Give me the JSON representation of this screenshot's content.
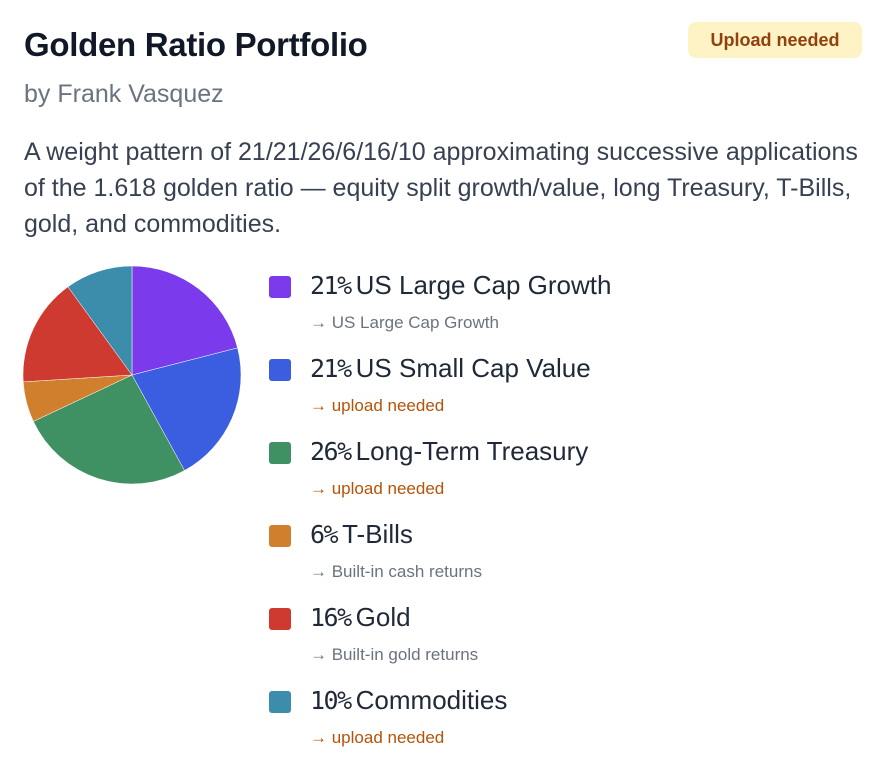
{
  "card": {
    "title": "Golden Ratio Portfolio",
    "author": "by Frank Vasquez",
    "badge": "Upload needed",
    "description": "A weight pattern of 21/21/26/6/16/10 approximating successive applications of the 1.618 golden ratio — equity split growth/value, long Treasury, T-Bills, gold, and commodities."
  },
  "colors": {
    "badge_bg": "#fdf3c4",
    "badge_text": "#92400e",
    "upload_needed_text": "#b45309",
    "resolved_text": "#6b7280"
  },
  "chart_data": {
    "type": "pie",
    "slices": [
      {
        "label": "US Large Cap Growth",
        "value": 21,
        "percent_text": "21%",
        "color": "#7c3aed",
        "note": "→ US Large Cap Growth",
        "status": "resolved"
      },
      {
        "label": "US Small Cap Value",
        "value": 21,
        "percent_text": "21%",
        "color": "#3b5ee0",
        "note": "→ upload needed",
        "status": "needed"
      },
      {
        "label": "Long-Term Treasury",
        "value": 26,
        "percent_text": "26%",
        "color": "#3f9163",
        "note": "→ upload needed",
        "status": "needed"
      },
      {
        "label": "T-Bills",
        "value": 6,
        "percent_text": "6%",
        "color": "#d07f2c",
        "note": "→ Built-in cash returns",
        "status": "resolved"
      },
      {
        "label": "Gold",
        "value": 16,
        "percent_text": "16%",
        "color": "#cf3a30",
        "note": "→ Built-in gold returns",
        "status": "resolved"
      },
      {
        "label": "Commodities",
        "value": 10,
        "percent_text": "10%",
        "color": "#3c8dab",
        "note": "→ upload needed",
        "status": "needed"
      }
    ]
  }
}
